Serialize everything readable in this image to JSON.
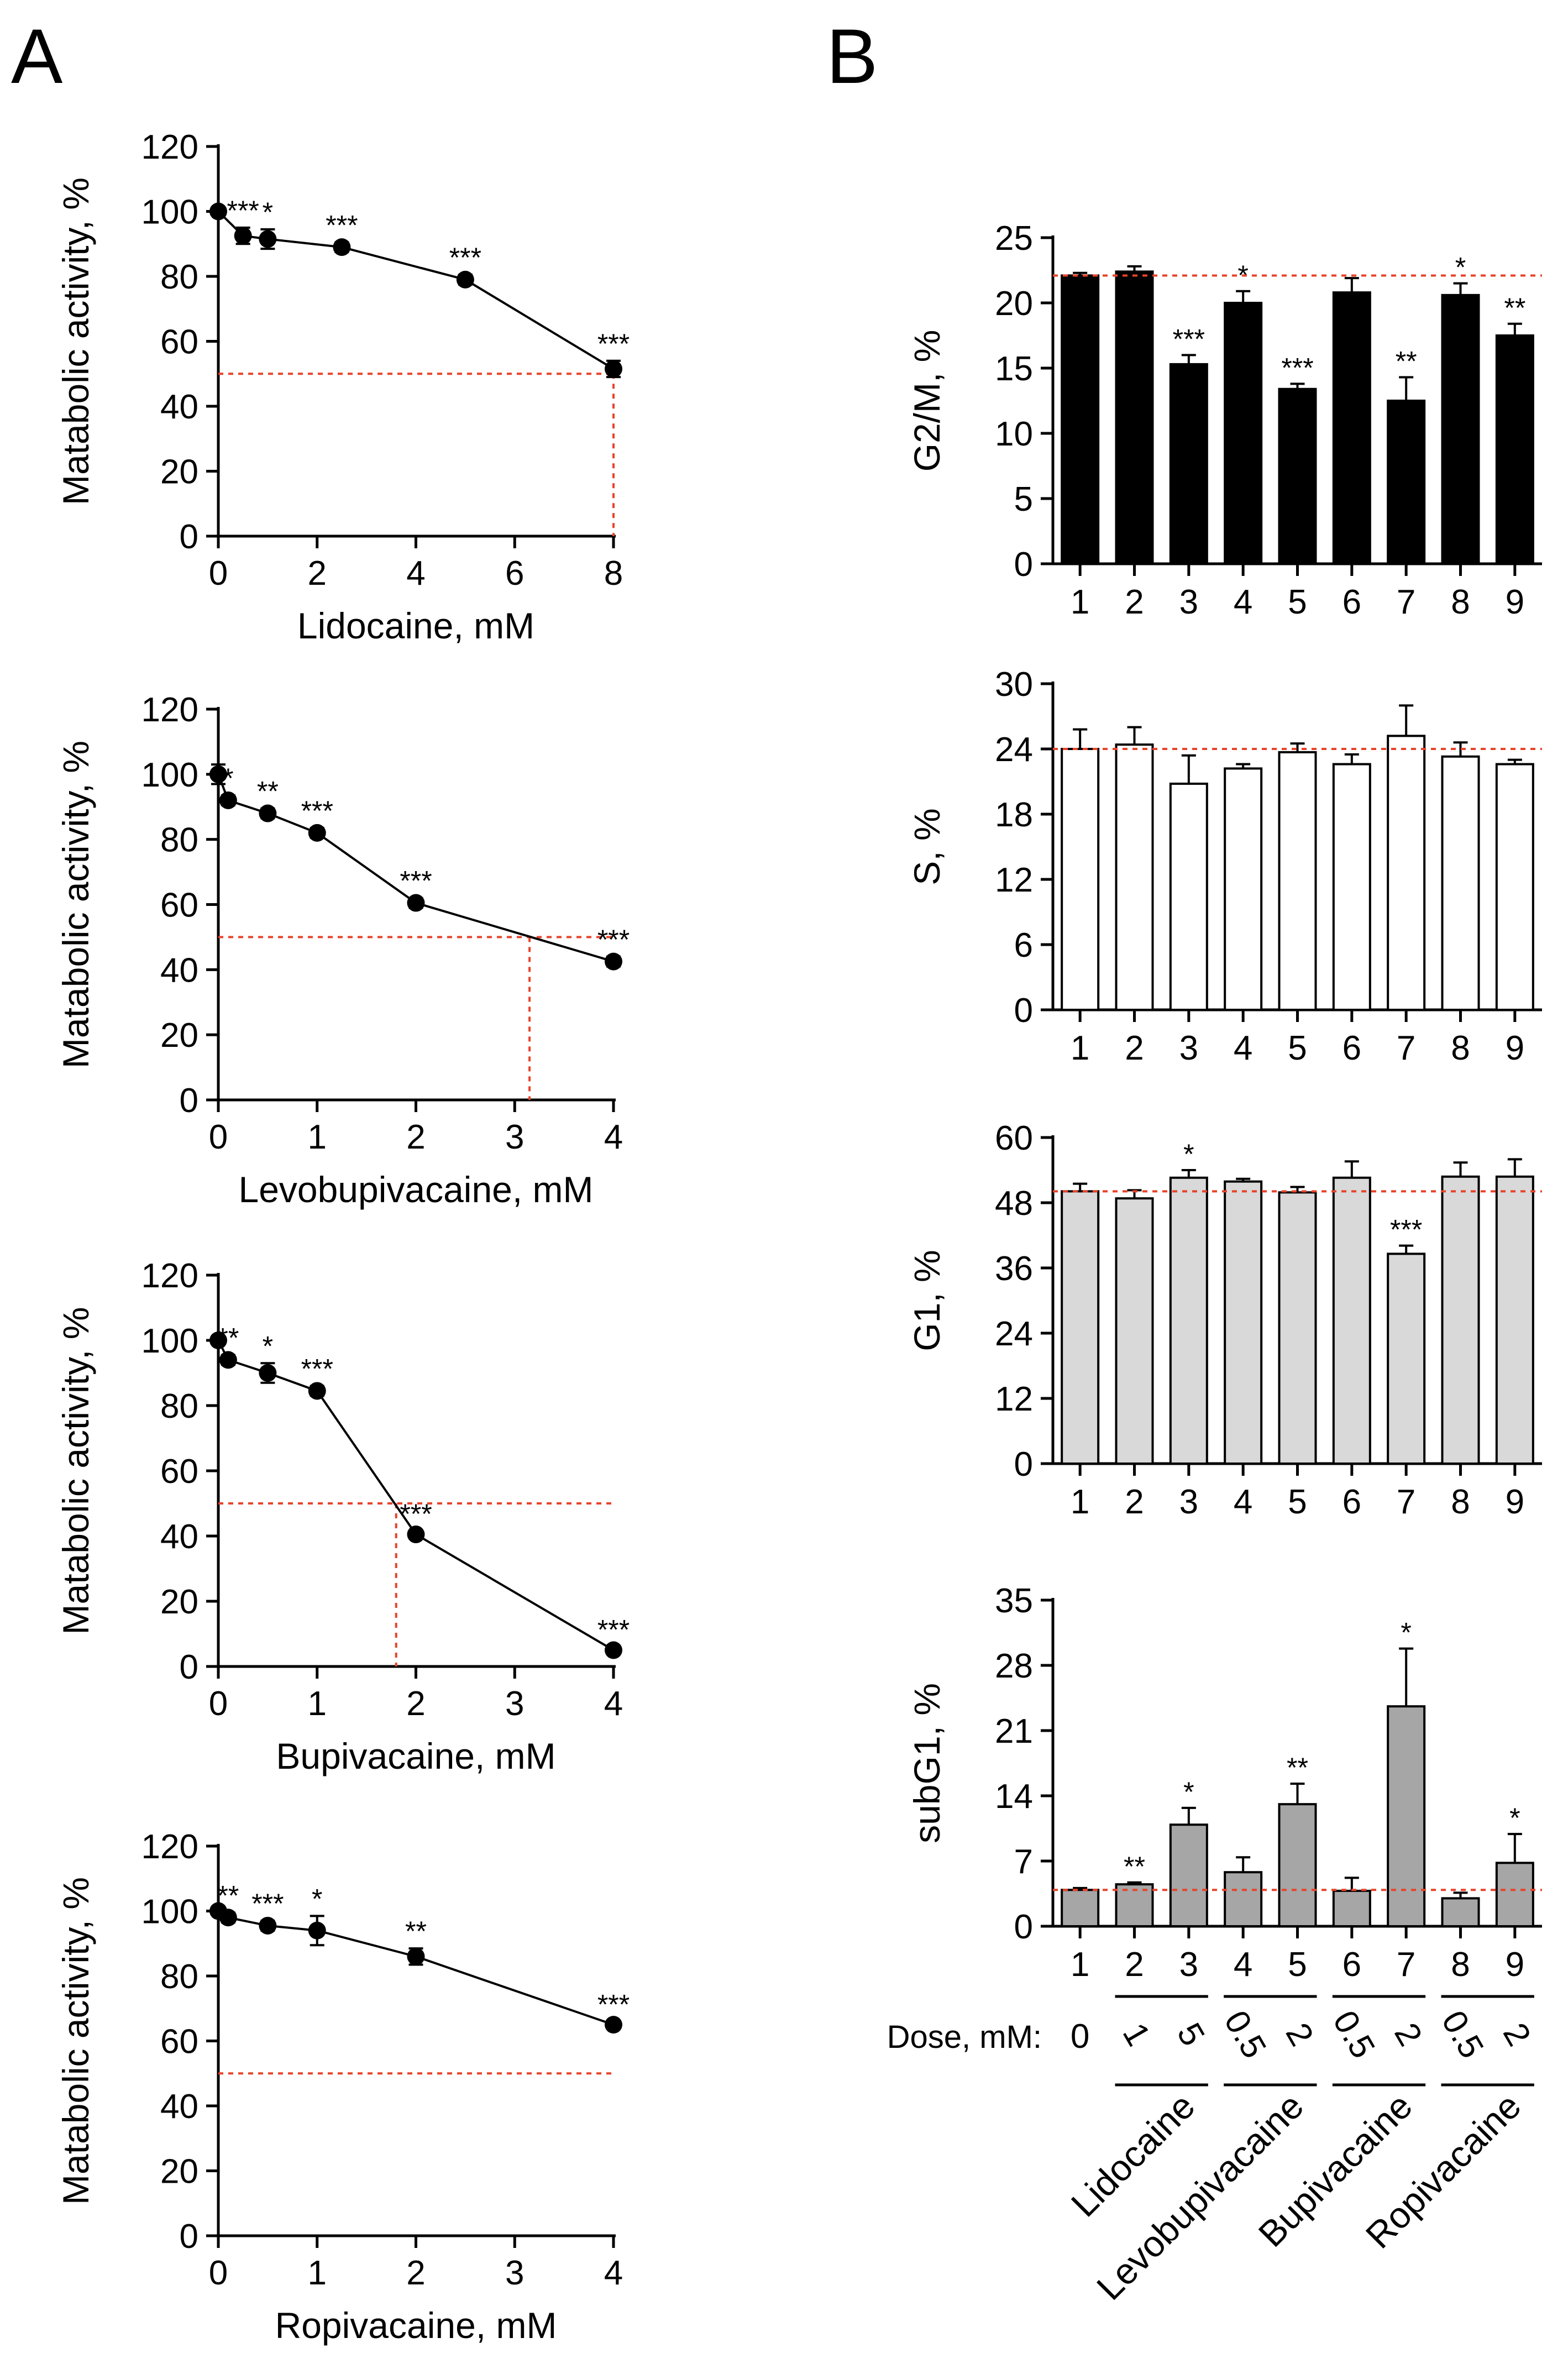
{
  "panels": {
    "A": "A",
    "B": "B"
  },
  "colors": {
    "line": "#000000",
    "marker": "#000000",
    "reference_line": "#e8432b",
    "bar_g2m": "#000000",
    "bar_s": "#ffffff",
    "bar_g1": "#d9d9d9",
    "bar_subg1": "#a6a6a6"
  },
  "chart_data": [
    {
      "type": "line",
      "panel": "A",
      "xlabel": "Lidocaine, mM",
      "ylabel": "Matabolic activity, %",
      "xlim": [
        0,
        8
      ],
      "ylim": [
        0,
        120
      ],
      "xticks": [
        0,
        2,
        4,
        6,
        8
      ],
      "yticks": [
        0,
        20,
        40,
        60,
        80,
        100,
        120
      ],
      "x": [
        0,
        0.5,
        1,
        2.5,
        5,
        8
      ],
      "y": [
        100,
        92.5,
        91.5,
        89,
        79,
        51.5
      ],
      "err": [
        0,
        2.5,
        3,
        1.5,
        1.5,
        2.5
      ],
      "sig": [
        "",
        "***",
        "*",
        "***",
        "***",
        "***"
      ],
      "ref_y": 50,
      "ref_x": 8
    },
    {
      "type": "line",
      "panel": "A",
      "xlabel": "Levobupivacaine, mM",
      "ylabel": "Matabolic activity, %",
      "xlim": [
        0,
        4
      ],
      "ylim": [
        0,
        120
      ],
      "xticks": [
        0,
        1,
        2,
        3,
        4
      ],
      "yticks": [
        0,
        20,
        40,
        60,
        80,
        100,
        120
      ],
      "x": [
        0,
        0.1,
        0.5,
        1,
        2,
        4
      ],
      "y": [
        100,
        92,
        88,
        82,
        60.5,
        42.5
      ],
      "err": [
        3,
        1.5,
        1.5,
        1.5,
        1.5,
        1.5
      ],
      "sig": [
        "",
        "*",
        "**",
        "***",
        "***",
        "***"
      ],
      "ref_y": 50,
      "ref_x": 3.15
    },
    {
      "type": "line",
      "panel": "A",
      "xlabel": "Bupivacaine, mM",
      "ylabel": "Matabolic activity, %",
      "xlim": [
        0,
        4
      ],
      "ylim": [
        0,
        120
      ],
      "xticks": [
        0,
        1,
        2,
        3,
        4
      ],
      "yticks": [
        0,
        20,
        40,
        60,
        80,
        100,
        120
      ],
      "x": [
        0,
        0.1,
        0.5,
        1,
        2,
        4
      ],
      "y": [
        100,
        94,
        90,
        84.5,
        40.5,
        5
      ],
      "err": [
        1,
        1.5,
        3,
        1.5,
        1,
        1
      ],
      "sig": [
        "",
        "**",
        "*",
        "***",
        "***",
        "***"
      ],
      "ref_y": 50,
      "ref_x": 1.8
    },
    {
      "type": "line",
      "panel": "A",
      "xlabel": "Ropivacaine, mM",
      "ylabel": "Matabolic activity, %",
      "xlim": [
        0,
        4
      ],
      "ylim": [
        0,
        120
      ],
      "xticks": [
        0,
        1,
        2,
        3,
        4
      ],
      "yticks": [
        0,
        20,
        40,
        60,
        80,
        100,
        120
      ],
      "x": [
        0,
        0.1,
        0.5,
        1,
        2,
        4
      ],
      "y": [
        100,
        98,
        95.5,
        94,
        86,
        65
      ],
      "err": [
        1,
        1.5,
        1.5,
        4.5,
        2.5,
        1
      ],
      "sig": [
        "",
        "**",
        "***",
        "*",
        "**",
        "***"
      ],
      "ref_y": 50,
      "ref_x": null
    },
    {
      "type": "bar",
      "panel": "B",
      "ylabel": "G2/M, %",
      "ylim": [
        0,
        25
      ],
      "yticks": [
        0,
        5,
        10,
        15,
        20,
        25
      ],
      "categories": [
        "1",
        "2",
        "3",
        "4",
        "5",
        "6",
        "7",
        "8",
        "9"
      ],
      "values": [
        22.1,
        22.4,
        15.3,
        20,
        13.4,
        20.8,
        12.5,
        20.6,
        17.5
      ],
      "err": [
        0.2,
        0.4,
        0.7,
        0.9,
        0.4,
        1.1,
        1.8,
        0.9,
        0.9
      ],
      "sig": [
        "",
        "",
        "***",
        "*",
        "***",
        "",
        "**",
        "*",
        "**"
      ],
      "ref_y": 22.1
    },
    {
      "type": "bar",
      "panel": "B",
      "ylabel": "S, %",
      "ylim": [
        0,
        30
      ],
      "yticks": [
        0,
        6,
        12,
        18,
        24,
        30
      ],
      "categories": [
        "1",
        "2",
        "3",
        "4",
        "5",
        "6",
        "7",
        "8",
        "9"
      ],
      "values": [
        24,
        24.4,
        20.8,
        22.2,
        23.7,
        22.6,
        25.2,
        23.3,
        22.6
      ],
      "err": [
        1.8,
        1.6,
        2.6,
        0.4,
        0.8,
        0.9,
        2.8,
        1.3,
        0.4
      ],
      "sig": [
        "",
        "",
        "",
        "",
        "",
        "",
        "",
        "",
        ""
      ],
      "ref_y": 24
    },
    {
      "type": "bar",
      "panel": "B",
      "ylabel": "G1, %",
      "ylim": [
        0,
        60
      ],
      "yticks": [
        0,
        12,
        24,
        36,
        48,
        60
      ],
      "categories": [
        "1",
        "2",
        "3",
        "4",
        "5",
        "6",
        "7",
        "8",
        "9"
      ],
      "values": [
        50.1,
        48.8,
        52.6,
        51.9,
        49.9,
        52.6,
        38.6,
        52.8,
        52.8
      ],
      "err": [
        1.4,
        1.5,
        1.4,
        0.5,
        1,
        3,
        1.5,
        2.6,
        3.2
      ],
      "sig": [
        "",
        "",
        "*",
        "",
        "",
        "",
        "***",
        "",
        ""
      ],
      "ref_y": 50.1
    },
    {
      "type": "bar",
      "panel": "B",
      "ylabel": "subG1, %",
      "ylim": [
        0,
        35
      ],
      "yticks": [
        0,
        7,
        14,
        21,
        28,
        35
      ],
      "categories": [
        "1",
        "2",
        "3",
        "4",
        "5",
        "6",
        "7",
        "8",
        "9"
      ],
      "values": [
        3.9,
        4.5,
        10.9,
        5.8,
        13.1,
        3.8,
        23.6,
        3,
        6.8
      ],
      "err": [
        0.2,
        0.2,
        1.8,
        1.6,
        2.2,
        1.4,
        6.2,
        0.6,
        3.1
      ],
      "sig": [
        "",
        "**",
        "*",
        "",
        "**",
        "",
        "*",
        "",
        "*"
      ],
      "ref_y": 3.9
    }
  ],
  "dose": {
    "label": "Dose, mM:",
    "values": [
      "0",
      "1",
      "5",
      "0.5",
      "2",
      "0.5",
      "2",
      "0.5",
      "2"
    ]
  },
  "groups": [
    {
      "name": "Lidocaine",
      "from": 2,
      "to": 3
    },
    {
      "name": "Levobupivacaine",
      "from": 4,
      "to": 5
    },
    {
      "name": "Bupivacaine",
      "from": 6,
      "to": 7
    },
    {
      "name": "Ropivacaine",
      "from": 8,
      "to": 9
    }
  ]
}
